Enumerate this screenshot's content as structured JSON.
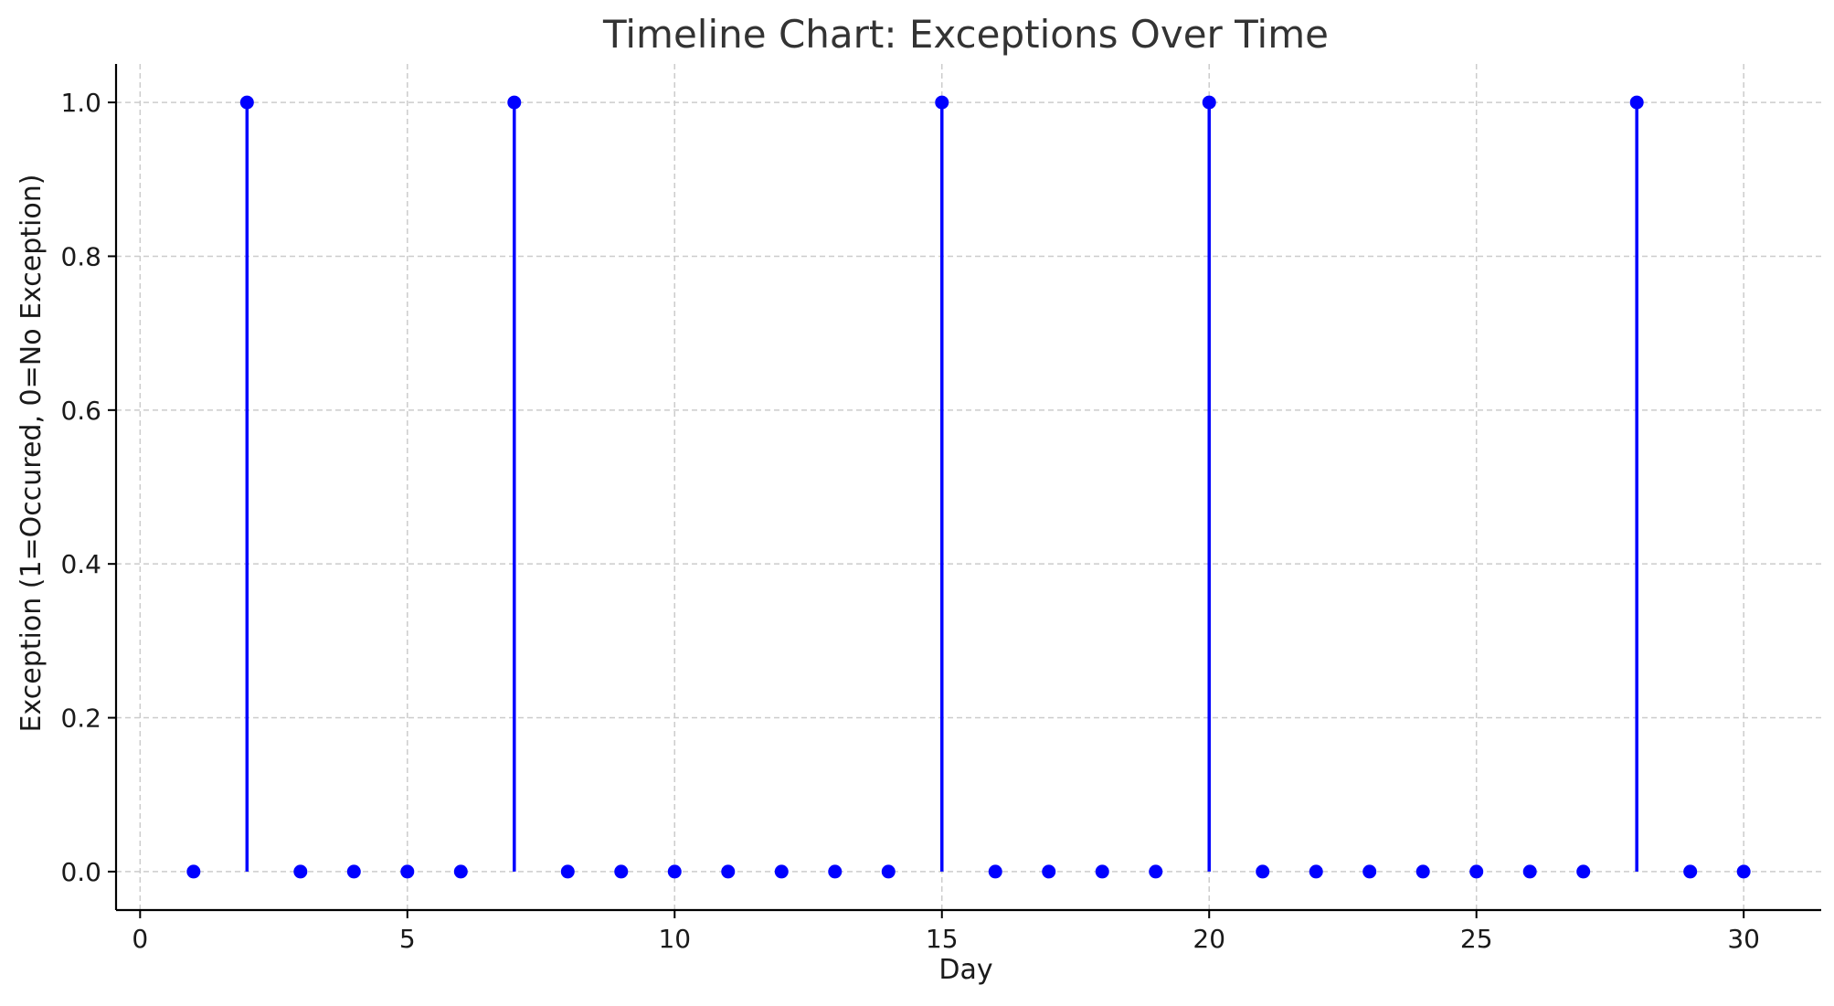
{
  "chart_data": {
    "type": "stem",
    "title": "Timeline Chart: Exceptions Over Time",
    "xlabel": "Day",
    "ylabel": "Exception (1=Occured, 0=No Exception)",
    "x": [
      1,
      2,
      3,
      4,
      5,
      6,
      7,
      8,
      9,
      10,
      11,
      12,
      13,
      14,
      15,
      16,
      17,
      18,
      19,
      20,
      21,
      22,
      23,
      24,
      25,
      26,
      27,
      28,
      29,
      30
    ],
    "y": [
      0,
      1,
      0,
      0,
      0,
      0,
      1,
      0,
      0,
      0,
      0,
      0,
      0,
      0,
      1,
      0,
      0,
      0,
      0,
      1,
      0,
      0,
      0,
      0,
      0,
      0,
      0,
      1,
      0,
      0
    ],
    "xlim": [
      -0.45,
      31.45
    ],
    "ylim": [
      -0.05,
      1.05
    ],
    "xticks": [
      0,
      5,
      10,
      15,
      20,
      25,
      30
    ],
    "xtick_labels": [
      "0",
      "5",
      "10",
      "15",
      "20",
      "25",
      "30"
    ],
    "yticks": [
      0.0,
      0.2,
      0.4,
      0.6,
      0.8,
      1.0
    ],
    "ytick_labels": [
      "0.0",
      "0.2",
      "0.4",
      "0.6",
      "0.8",
      "1.0"
    ],
    "grid": true,
    "color": "#0000ff"
  }
}
